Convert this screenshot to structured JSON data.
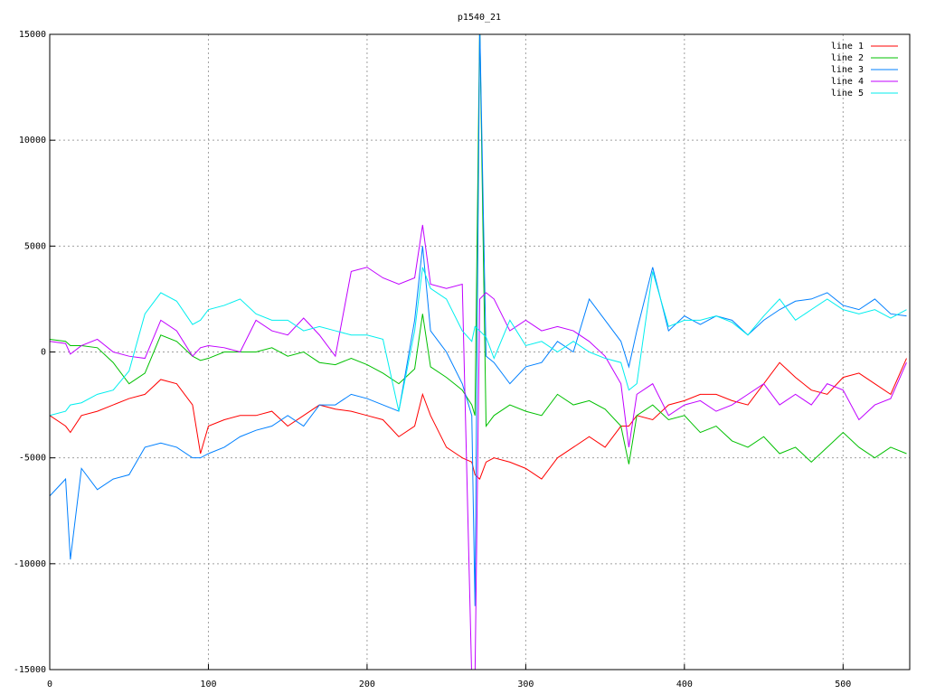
{
  "chart_data": {
    "type": "line",
    "title": "p1540_21",
    "x": [
      0,
      10,
      13,
      20,
      30,
      40,
      50,
      60,
      70,
      80,
      90,
      95,
      100,
      110,
      120,
      130,
      140,
      150,
      160,
      170,
      180,
      190,
      200,
      210,
      220,
      230,
      235,
      240,
      250,
      260,
      266,
      268,
      271,
      275,
      280,
      290,
      300,
      310,
      320,
      330,
      340,
      350,
      360,
      365,
      370,
      380,
      390,
      400,
      410,
      420,
      430,
      440,
      450,
      460,
      470,
      480,
      490,
      500,
      510,
      520,
      530,
      540
    ],
    "series": [
      {
        "name": "line 1",
        "color": "#ff0000",
        "values": [
          -3000,
          -3500,
          -3800,
          -3000,
          -2800,
          -2500,
          -2200,
          -2000,
          -1300,
          -1500,
          -2500,
          -4800,
          -3500,
          -3200,
          -3000,
          -3000,
          -2800,
          -3500,
          -3000,
          -2500,
          -2700,
          -2800,
          -3000,
          -3200,
          -4000,
          -3500,
          -2000,
          -3000,
          -4500,
          -5000,
          -5200,
          -5800,
          -6000,
          -5200,
          -5000,
          -5200,
          -5500,
          -6000,
          -5000,
          -4500,
          -4000,
          -4500,
          -3500,
          -3500,
          -3000,
          -3200,
          -2500,
          -2300,
          -2000,
          -2000,
          -2300,
          -2500,
          -1500,
          -500,
          -1200,
          -1800,
          -2000,
          -1200,
          -1000,
          -1500,
          -2000,
          -300
        ]
      },
      {
        "name": "line 2",
        "color": "#00c000",
        "values": [
          600,
          500,
          300,
          300,
          200,
          -500,
          -1500,
          -1000,
          800,
          500,
          -200,
          -400,
          -300,
          0,
          0,
          0,
          200,
          -200,
          0,
          -500,
          -600,
          -300,
          -600,
          -1000,
          -1500,
          -800,
          1800,
          -700,
          -1200,
          -1800,
          -2500,
          -3000,
          15500,
          -3500,
          -3000,
          -2500,
          -2800,
          -3000,
          -2000,
          -2500,
          -2300,
          -2700,
          -3500,
          -5300,
          -3000,
          -2500,
          -3200,
          -3000,
          -3800,
          -3500,
          -4200,
          -4500,
          -4000,
          -4800,
          -4500,
          -5200,
          -4500,
          -3800,
          -4500,
          -5000,
          -4500,
          -4800
        ]
      },
      {
        "name": "line 3",
        "color": "#0080ff",
        "values": [
          -6800,
          -6000,
          -9800,
          -5500,
          -6500,
          -6000,
          -5800,
          -4500,
          -4300,
          -4500,
          -5000,
          -5000,
          -4800,
          -4500,
          -4000,
          -3700,
          -3500,
          -3000,
          -3500,
          -2500,
          -2500,
          -2000,
          -2200,
          -2500,
          -2800,
          1500,
          5000,
          1000,
          0,
          -1500,
          -3000,
          -12000,
          15500,
          -200,
          -500,
          -1500,
          -700,
          -500,
          500,
          0,
          2500,
          1500,
          500,
          -700,
          1000,
          4000,
          1000,
          1700,
          1300,
          1700,
          1500,
          800,
          1500,
          2000,
          2400,
          2500,
          2800,
          2200,
          2000,
          2500,
          1800,
          1700
        ]
      },
      {
        "name": "line 4",
        "color": "#c000ff",
        "values": [
          500,
          400,
          -100,
          300,
          600,
          0,
          -200,
          -300,
          1500,
          1000,
          -200,
          200,
          300,
          200,
          0,
          1500,
          1000,
          800,
          1600,
          800,
          -200,
          3800,
          4000,
          3500,
          3200,
          3500,
          6000,
          3200,
          3000,
          3200,
          -15500,
          -15500,
          2500,
          2800,
          2500,
          1000,
          1500,
          1000,
          1200,
          1000,
          500,
          -200,
          -1500,
          -4500,
          -2000,
          -1500,
          -3000,
          -2500,
          -2300,
          -2800,
          -2500,
          -2000,
          -1500,
          -2500,
          -2000,
          -2500,
          -1500,
          -1800,
          -3200,
          -2500,
          -2200,
          -500
        ]
      },
      {
        "name": "line 5",
        "color": "#00eeee",
        "values": [
          -3000,
          -2800,
          -2500,
          -2400,
          -2000,
          -1800,
          -900,
          1800,
          2800,
          2400,
          1300,
          1500,
          2000,
          2200,
          2500,
          1800,
          1500,
          1500,
          1000,
          1200,
          1000,
          800,
          800,
          600,
          -2800,
          1000,
          4000,
          3000,
          2500,
          1000,
          500,
          1200,
          1000,
          700,
          -300,
          1500,
          300,
          500,
          0,
          500,
          0,
          -300,
          -500,
          -1800,
          -1500,
          3800,
          1200,
          1500,
          1500,
          1700,
          1400,
          800,
          1700,
          2500,
          1500,
          2000,
          2500,
          2000,
          1800,
          2000,
          1600,
          2000
        ]
      }
    ],
    "xlim": [
      0,
      542
    ],
    "ylim": [
      -15000,
      15000
    ],
    "xticks": [
      0,
      100,
      200,
      300,
      400,
      500
    ],
    "yticks": [
      -15000,
      -10000,
      -5000,
      0,
      5000,
      10000,
      15000
    ],
    "grid": true,
    "legend": "top right"
  }
}
